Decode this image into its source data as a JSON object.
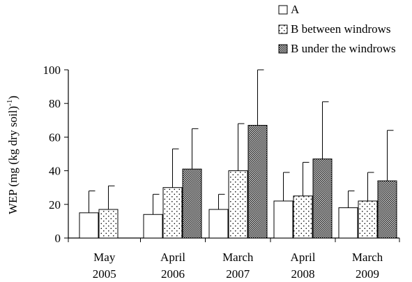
{
  "chart_data": {
    "type": "bar",
    "categories": [
      [
        "May",
        "2005"
      ],
      [
        "April",
        "2006"
      ],
      [
        "March",
        "2007"
      ],
      [
        "April",
        "2008"
      ],
      [
        "March",
        "2009"
      ]
    ],
    "ylabel_main": "WEP (mg (kg dry soil)",
    "ylabel_sup": "-1",
    "ylabel_close": ")",
    "ylim": [
      0,
      100
    ],
    "yticks": [
      0,
      20,
      40,
      60,
      80,
      100
    ],
    "legend_placement": "top-right",
    "series": [
      {
        "name": "A",
        "pattern": "white",
        "values": [
          15,
          14,
          17,
          22,
          18
        ],
        "errors": [
          13,
          12,
          9,
          17,
          10
        ]
      },
      {
        "name": "B between windrows",
        "pattern": "dots",
        "values": [
          17,
          30,
          40,
          25,
          22
        ],
        "errors": [
          14,
          23,
          28,
          20,
          17
        ]
      },
      {
        "name": "B under the windrows",
        "pattern": "crosshatch",
        "values": [
          null,
          41,
          67,
          47,
          34
        ],
        "errors": [
          null,
          24,
          33,
          34,
          30
        ]
      }
    ]
  }
}
